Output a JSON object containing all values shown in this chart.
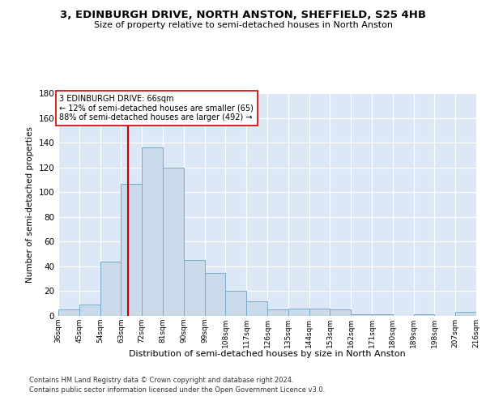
{
  "title": "3, EDINBURGH DRIVE, NORTH ANSTON, SHEFFIELD, S25 4HB",
  "subtitle": "Size of property relative to semi-detached houses in North Anston",
  "xlabel": "Distribution of semi-detached houses by size in North Anston",
  "ylabel": "Number of semi-detached properties",
  "footer1": "Contains HM Land Registry data © Crown copyright and database right 2024.",
  "footer2": "Contains public sector information licensed under the Open Government Licence v3.0.",
  "annotation_title": "3 EDINBURGH DRIVE: 66sqm",
  "annotation_line1": "← 12% of semi-detached houses are smaller (65)",
  "annotation_line2": "88% of semi-detached houses are larger (492) →",
  "property_size": 66,
  "bar_color": "#c9daea",
  "bar_edge_color": "#7aaac8",
  "marker_color": "#cc0000",
  "bin_starts": [
    36,
    45,
    54,
    63,
    72,
    81,
    90,
    99,
    108,
    117,
    126,
    135,
    144,
    153,
    162,
    171,
    180,
    189,
    198,
    207
  ],
  "bin_labels": [
    "36sqm",
    "45sqm",
    "54sqm",
    "63sqm",
    "72sqm",
    "81sqm",
    "90sqm",
    "99sqm",
    "108sqm",
    "117sqm",
    "126sqm",
    "135sqm",
    "144sqm",
    "153sqm",
    "162sqm",
    "171sqm",
    "180sqm",
    "189sqm",
    "198sqm",
    "207sqm",
    "216sqm"
  ],
  "counts": [
    5,
    9,
    44,
    107,
    136,
    120,
    45,
    35,
    20,
    12,
    5,
    6,
    6,
    5,
    1,
    1,
    0,
    1,
    0,
    3
  ],
  "ylim": [
    0,
    180
  ],
  "yticks": [
    0,
    20,
    40,
    60,
    80,
    100,
    120,
    140,
    160,
    180
  ],
  "background_color": "#ffffff",
  "plot_bg_color": "#dce8f5"
}
